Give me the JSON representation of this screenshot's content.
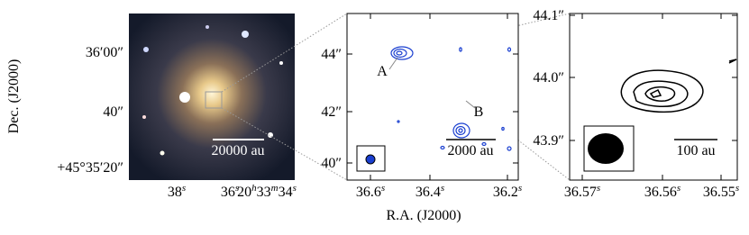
{
  "y_label": "Dec. (J2000)",
  "x_label": "R.A. (J2000)",
  "panels": [
    {
      "yticks": [
        "36′00″",
        "40″",
        "+45°35′20″"
      ],
      "xticks": [
        [
          "38",
          "s"
        ],
        [
          "36",
          "s"
        ],
        [
          "20",
          "h",
          "33",
          "m",
          "34",
          "s"
        ]
      ],
      "scalebar": "20000 au"
    },
    {
      "yticks": [
        "44″",
        "42″",
        "40″"
      ],
      "xticks": [
        [
          "36.6",
          "s"
        ],
        [
          "36.4",
          "s"
        ],
        [
          "36.2",
          "s"
        ]
      ],
      "scalebar": "2000 au",
      "sources": [
        "A",
        "B"
      ]
    },
    {
      "yticks": [
        "44.1″",
        "44.0″",
        "43.9″"
      ],
      "xticks": [
        [
          "36.57",
          "s"
        ],
        [
          "36.56",
          "s"
        ],
        [
          "36.55",
          "s"
        ]
      ],
      "scalebar": "100 au"
    }
  ]
}
